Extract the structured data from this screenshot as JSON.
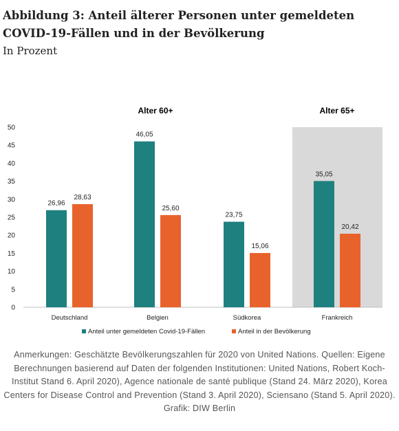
{
  "title": "Abbildung 3: Anteil älterer Personen unter gemeldeten COVID-19-Fällen und in der Bevölkerung",
  "subtitle": "In Prozent",
  "notes": "Anmerkungen: Geschätzte Bevölkerungszahlen für 2020 von United Nations. Quellen: Eigene Berechnungen basierend auf Daten der folgenden Institutionen: United Nations, Robert Koch-Institut Stand 6. April 2020), Agence nationale de santé publique (Stand 24. März 2020), Korea Centers for Disease Control and Prevention (Stand 3. April 2020), Sciensano (Stand 5. April 2020).",
  "credit": "Grafik: DIW Berlin",
  "colors": {
    "teal": "#1f8080",
    "orange": "#e8622c",
    "shade": "#d9d9d9"
  },
  "chart_data": {
    "type": "bar",
    "group_labels": [
      "Alter 60+",
      "Alter 65+"
    ],
    "categories": [
      "Deutschland",
      "Belgien",
      "Südkorea",
      "Frankreich"
    ],
    "series": [
      {
        "name": "Anteil unter gemeldeten Covid-19-Fällen",
        "values": [
          26.96,
          46.05,
          23.75,
          35.05
        ]
      },
      {
        "name": "Anteil in der Bevölkerung",
        "values": [
          28.63,
          25.6,
          15.06,
          20.42
        ]
      }
    ],
    "value_labels": [
      [
        "26,96",
        "46,05",
        "23,75",
        "35,05"
      ],
      [
        "28,63",
        "25,60",
        "15,06",
        "20,42"
      ]
    ],
    "yticks": [
      "0",
      "5",
      "10",
      "15",
      "20",
      "25",
      "30",
      "35",
      "40",
      "45",
      "50"
    ],
    "ylim": [
      0,
      50
    ],
    "grid": false,
    "legend": "bottom"
  }
}
